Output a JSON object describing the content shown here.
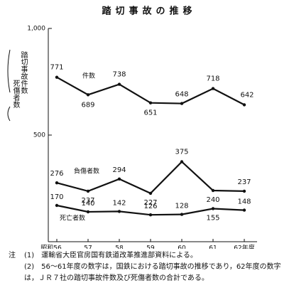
{
  "chart_data": {
    "type": "line",
    "title": "踏切事故の推移",
    "y_label": [
      "踏切事故件数",
      "死傷者数"
    ],
    "categories": [
      "昭和56",
      "57",
      "58",
      "59",
      "60",
      "61",
      "62年度"
    ],
    "series": [
      {
        "name": "件数",
        "color": "#111111",
        "values": [
          771,
          689,
          738,
          651,
          648,
          718,
          642
        ]
      },
      {
        "name": "負傷者数",
        "color": "#111111",
        "values": [
          276,
          237,
          294,
          227,
          375,
          240,
          237
        ]
      },
      {
        "name": "死亡者数",
        "color": "#111111",
        "values": [
          170,
          140,
          142,
          126,
          128,
          155,
          148
        ]
      }
    ],
    "ylim": [
      0,
      1000
    ],
    "yticks": [
      500,
      {
        "value": 1000,
        "label": "1,000"
      }
    ],
    "grid": false
  },
  "notes": {
    "marker": "注",
    "items": [
      "(1)　運輸省大臣官房国有鉄道改革推進部資料による。",
      "(2)　56～61年度の数字は，国鉄における踏切事故の推移であり，62年度の数字は，ＪＲ７社の踏切事故件数及び死傷者数の合計である。"
    ]
  }
}
